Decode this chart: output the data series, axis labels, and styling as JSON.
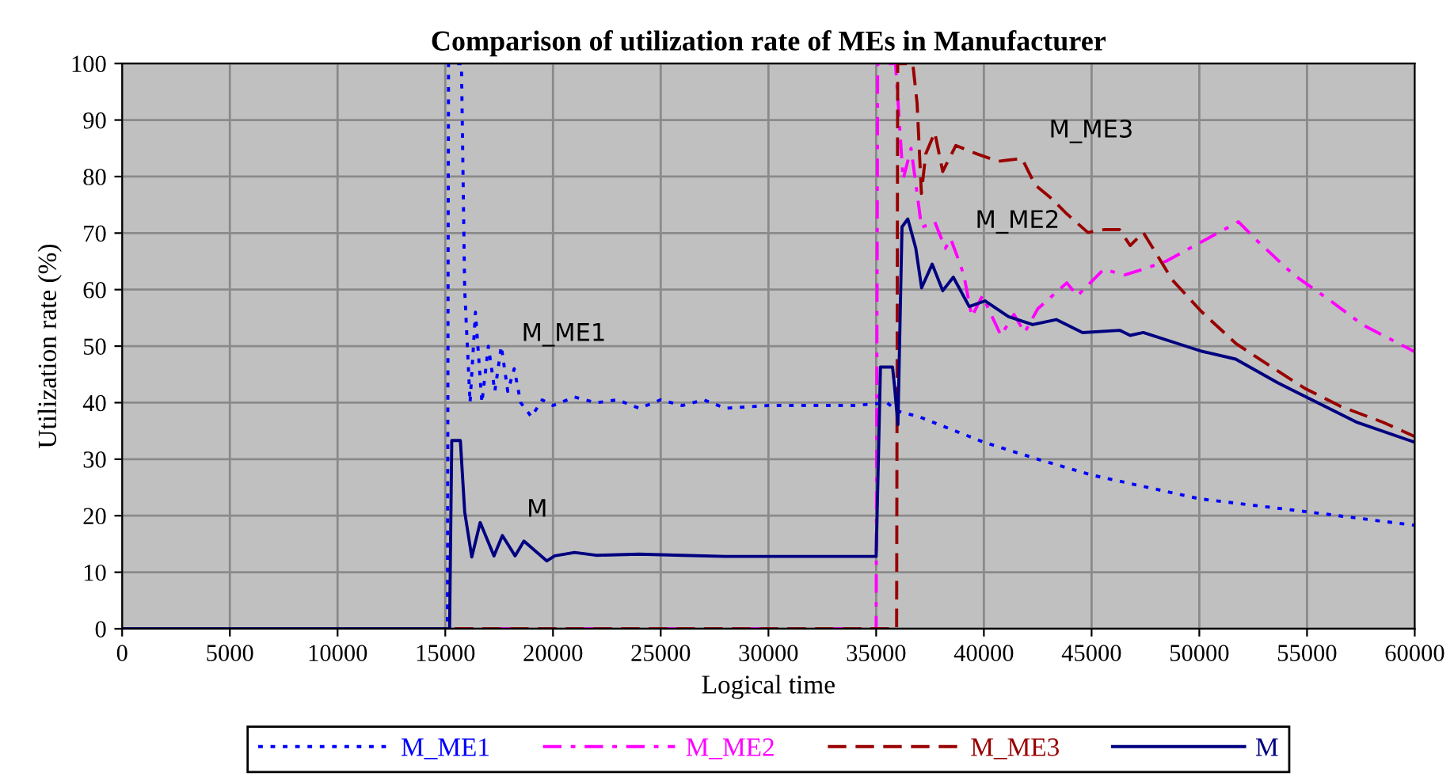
{
  "chart_data": {
    "type": "line",
    "title": "Comparison of utilization rate of MEs in Manufacturer",
    "xlabel": "Logical time",
    "ylabel": "Utilization rate (%)",
    "xlim": [
      0,
      60000
    ],
    "ylim": [
      0,
      100
    ],
    "xticks": [
      0,
      5000,
      10000,
      15000,
      20000,
      25000,
      30000,
      35000,
      40000,
      45000,
      50000,
      55000,
      60000
    ],
    "yticks": [
      0,
      10,
      20,
      30,
      40,
      50,
      60,
      70,
      80,
      90,
      100
    ],
    "grid": true,
    "legend": "bottom",
    "marker": "none",
    "series": [
      {
        "name": "M_ME1",
        "color": "#0000ff",
        "line_style": "dotted",
        "x": [
          0,
          15100,
          15150,
          15750,
          15900,
          16150,
          16400,
          16700,
          17000,
          17300,
          17600,
          17900,
          18200,
          18500,
          19000,
          19500,
          20000,
          21000,
          22000,
          23000,
          24000,
          25000,
          26000,
          27000,
          28000,
          30000,
          32000,
          34000,
          35500,
          36000,
          37000,
          40000,
          42500,
          45000,
          50000,
          55000,
          60000
        ],
        "values": [
          0,
          0,
          100,
          100,
          60,
          40,
          56,
          40,
          50,
          42,
          50,
          42,
          46,
          40,
          37.5,
          40.5,
          39.5,
          41,
          40,
          40.5,
          39,
          40.5,
          39.5,
          40.5,
          39,
          39.5,
          39.5,
          39.5,
          40,
          38.5,
          37.5,
          33,
          30,
          27.2,
          23,
          20.7,
          18.3
        ]
      },
      {
        "name": "M_ME2",
        "color": "#ff00ff",
        "line_style": "dashdot",
        "x": [
          0,
          35000,
          35070,
          35900,
          36250,
          36620,
          37110,
          37720,
          38210,
          38460,
          38820,
          39070,
          39440,
          39930,
          40790,
          41400,
          41890,
          42500,
          43850,
          44340,
          45560,
          46540,
          47400,
          48500,
          49980,
          51820,
          52670,
          54390,
          56100,
          57570,
          60000
        ],
        "values": [
          0,
          0,
          100,
          100,
          79.5,
          85,
          71,
          72,
          67.3,
          69,
          65.3,
          62.6,
          55.2,
          58.9,
          51.9,
          55.6,
          52.4,
          56.6,
          61.2,
          58.9,
          63.6,
          62.6,
          63.6,
          65.1,
          68.2,
          72,
          68.7,
          62.6,
          58,
          53.8,
          49
        ]
      },
      {
        "name": "M_ME3",
        "color": "#990000",
        "line_style": "dashed",
        "x": [
          0,
          35950,
          36000,
          36700,
          36900,
          37100,
          37300,
          37720,
          38090,
          38700,
          39680,
          40660,
          41770,
          42380,
          43110,
          43850,
          44830,
          45560,
          46300,
          46790,
          47400,
          48750,
          50100,
          51690,
          53160,
          54870,
          56590,
          58550,
          60000
        ],
        "values": [
          0,
          0,
          100,
          100,
          93,
          77,
          84,
          87.8,
          80.9,
          85.5,
          84,
          82.7,
          83.2,
          78.5,
          76.2,
          73.4,
          70.1,
          70.6,
          70.6,
          67.8,
          70.1,
          61.7,
          56.1,
          50.5,
          46.8,
          42.6,
          39.3,
          36.5,
          34
        ]
      },
      {
        "name": "M",
        "color": "#000080",
        "line_style": "solid",
        "x": [
          0,
          15200,
          15300,
          15700,
          15900,
          16230,
          16620,
          17260,
          17650,
          18240,
          18650,
          19710,
          20080,
          21000,
          22000,
          24000,
          26000,
          28000,
          30000,
          32000,
          35000,
          35200,
          35760,
          35850,
          36010,
          36200,
          36470,
          36840,
          37110,
          37600,
          38090,
          38580,
          39320,
          40050,
          41150,
          42260,
          43360,
          44580,
          46300,
          46790,
          47400,
          50100,
          51690,
          53650,
          55120,
          57330,
          60000
        ],
        "values": [
          0,
          0,
          33.3,
          33.3,
          20.7,
          12.7,
          18.8,
          12.9,
          16.5,
          12.9,
          15.5,
          12,
          12.9,
          13.5,
          13,
          13.2,
          13,
          12.8,
          12.8,
          12.8,
          12.8,
          46.3,
          46.3,
          43,
          36.1,
          71.1,
          72.5,
          67.3,
          60.3,
          64.5,
          59.8,
          62.2,
          57,
          58,
          55.2,
          53.8,
          54.7,
          52.4,
          52.8,
          51.9,
          52.4,
          49.1,
          47.7,
          43.5,
          40.7,
          36.5,
          33
        ]
      }
    ],
    "annotations": [
      "M_ME1",
      "M",
      "M_ME2",
      "M_ME3"
    ]
  }
}
